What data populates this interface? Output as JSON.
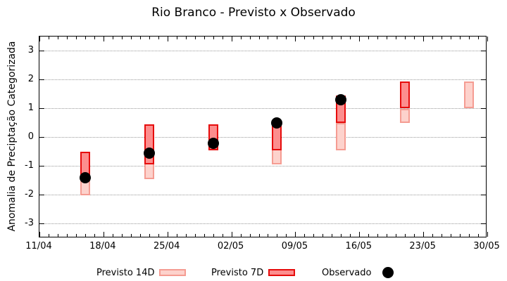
{
  "chart_data": {
    "type": "bar",
    "title": "Rio Branco - Previsto x Observado",
    "ylabel": "Anomalia de Preciptação Categorizada",
    "xlabel": "",
    "ylim": [
      -3.5,
      3.5
    ],
    "yticks": [
      3,
      2,
      1,
      0,
      -1,
      -2,
      -3
    ],
    "grid": "horizontal-dotted",
    "legend_position": "bottom-center",
    "x_axis": {
      "total_days": 49,
      "minor_tick_every_days": 1,
      "major_tick_every_days": 7,
      "major_tick_labels": [
        "11/04",
        "18/04",
        "25/04",
        "02/05",
        "09/05",
        "16/05",
        "23/05",
        "30/05"
      ]
    },
    "series": [
      {
        "name": "Previsto 14D",
        "type": "range_bar",
        "fill": "#fdd2cc",
        "border": "#f59c92"
      },
      {
        "name": "Previsto 7D",
        "type": "range_bar",
        "fill": "#fc8e8e",
        "border": "#e60c0c"
      },
      {
        "name": "Observado",
        "type": "point",
        "fill": "#000000"
      }
    ],
    "groups": [
      {
        "date": "16/04",
        "day": 5,
        "previsto_14d": [
          -2.0,
          -0.5
        ],
        "previsto_7d": [
          -1.3,
          -0.5
        ],
        "observado": -1.4
      },
      {
        "date": "23/04",
        "day": 12,
        "previsto_14d": [
          -1.45,
          0.45
        ],
        "previsto_7d": [
          -0.95,
          0.45
        ],
        "observado": -0.55
      },
      {
        "date": "30/04",
        "day": 19,
        "previsto_14d": null,
        "previsto_7d": [
          -0.45,
          0.45
        ],
        "observado": -0.2
      },
      {
        "date": "07/05",
        "day": 26,
        "previsto_14d": [
          -0.95,
          0.45
        ],
        "previsto_7d": [
          -0.45,
          0.45
        ],
        "observado": 0.5
      },
      {
        "date": "14/05",
        "day": 33,
        "previsto_14d": [
          -0.45,
          0.5
        ],
        "previsto_7d": [
          0.5,
          1.45
        ],
        "observado": 1.3
      },
      {
        "date": "21/05",
        "day": 40,
        "previsto_14d": [
          0.5,
          1.0
        ],
        "previsto_7d": [
          1.0,
          1.95
        ],
        "observado": null
      },
      {
        "date": "28/05",
        "day": 47,
        "previsto_14d": [
          1.0,
          1.95
        ],
        "previsto_7d": null,
        "observado": null
      }
    ],
    "colors": {
      "grid": "#999999",
      "axis": "#000000",
      "observado": "#000000"
    }
  }
}
